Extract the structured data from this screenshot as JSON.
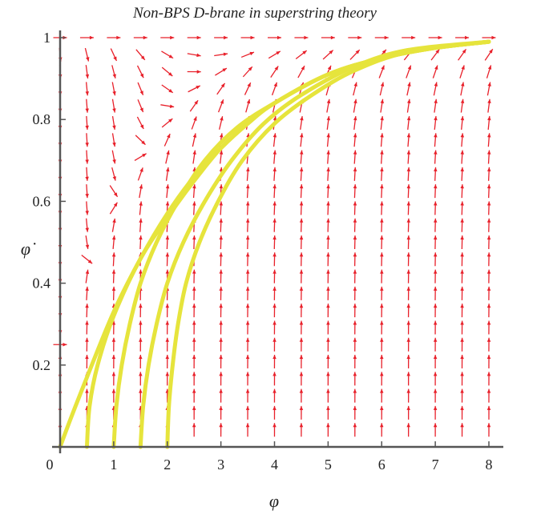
{
  "chart_data": {
    "type": "vector-field",
    "title": "Non-BPS D-brane in superstring theory",
    "xlabel": "φ",
    "ylabel": "φ̇",
    "xlim": [
      0,
      8.2
    ],
    "ylim": [
      0,
      1.02
    ],
    "x_ticks": [
      {
        "value": 1,
        "label": "1"
      },
      {
        "value": 2,
        "label": "2"
      },
      {
        "value": 3,
        "label": "3"
      },
      {
        "value": 4,
        "label": "4"
      },
      {
        "value": 5,
        "label": "5"
      },
      {
        "value": 6,
        "label": "6"
      },
      {
        "value": 7,
        "label": "7"
      },
      {
        "value": 8,
        "label": "8"
      }
    ],
    "y_ticks": [
      {
        "value": 0.2,
        "label": "0.2"
      },
      {
        "value": 0.4,
        "label": "0.4"
      },
      {
        "value": 0.6,
        "label": "0.6"
      },
      {
        "value": 0.8,
        "label": "0.8"
      },
      {
        "value": 1,
        "label": "1"
      }
    ],
    "origin_label": "0",
    "field_color": "#e8202a",
    "curve_color": "#e6e43c",
    "trajectories": [
      {
        "points": [
          [
            0.0,
            0.0
          ],
          [
            0.2,
            0.07
          ],
          [
            0.5,
            0.17
          ],
          [
            1.0,
            0.33
          ],
          [
            1.5,
            0.46
          ],
          [
            2.0,
            0.57
          ],
          [
            2.5,
            0.66
          ],
          [
            3.0,
            0.73
          ],
          [
            3.5,
            0.79
          ],
          [
            4.0,
            0.84
          ],
          [
            5.0,
            0.91
          ],
          [
            6.0,
            0.95
          ],
          [
            7.0,
            0.975
          ],
          [
            8.0,
            0.99
          ]
        ]
      },
      {
        "points": [
          [
            0.5,
            0.0
          ],
          [
            0.55,
            0.1
          ],
          [
            0.7,
            0.2
          ],
          [
            1.0,
            0.32
          ],
          [
            1.5,
            0.46
          ],
          [
            2.0,
            0.56
          ],
          [
            2.5,
            0.65
          ],
          [
            3.0,
            0.73
          ],
          [
            3.5,
            0.79
          ],
          [
            4.0,
            0.84
          ],
          [
            5.0,
            0.91
          ],
          [
            6.0,
            0.95
          ],
          [
            7.0,
            0.975
          ],
          [
            8.0,
            0.99
          ]
        ]
      },
      {
        "points": [
          [
            1.0,
            0.0
          ],
          [
            1.05,
            0.1
          ],
          [
            1.15,
            0.2
          ],
          [
            1.3,
            0.3
          ],
          [
            1.5,
            0.4
          ],
          [
            1.8,
            0.5
          ],
          [
            2.2,
            0.6
          ],
          [
            2.7,
            0.7
          ],
          [
            3.3,
            0.78
          ],
          [
            4.0,
            0.84
          ],
          [
            5.0,
            0.91
          ],
          [
            6.0,
            0.95
          ],
          [
            7.0,
            0.975
          ],
          [
            8.0,
            0.99
          ]
        ]
      },
      {
        "points": [
          [
            1.5,
            0.0
          ],
          [
            1.55,
            0.1
          ],
          [
            1.65,
            0.2
          ],
          [
            1.8,
            0.3
          ],
          [
            2.0,
            0.4
          ],
          [
            2.3,
            0.5
          ],
          [
            2.7,
            0.6
          ],
          [
            3.2,
            0.7
          ],
          [
            3.8,
            0.79
          ],
          [
            4.5,
            0.86
          ],
          [
            5.5,
            0.93
          ],
          [
            6.5,
            0.97
          ],
          [
            8.0,
            0.99
          ]
        ]
      },
      {
        "points": [
          [
            2.0,
            0.0
          ],
          [
            2.03,
            0.1
          ],
          [
            2.1,
            0.2
          ],
          [
            2.2,
            0.3
          ],
          [
            2.35,
            0.4
          ],
          [
            2.6,
            0.5
          ],
          [
            2.95,
            0.6
          ],
          [
            3.4,
            0.7
          ],
          [
            4.0,
            0.79
          ],
          [
            4.7,
            0.86
          ],
          [
            5.5,
            0.92
          ],
          [
            6.5,
            0.965
          ],
          [
            8.0,
            0.99
          ]
        ]
      }
    ]
  }
}
